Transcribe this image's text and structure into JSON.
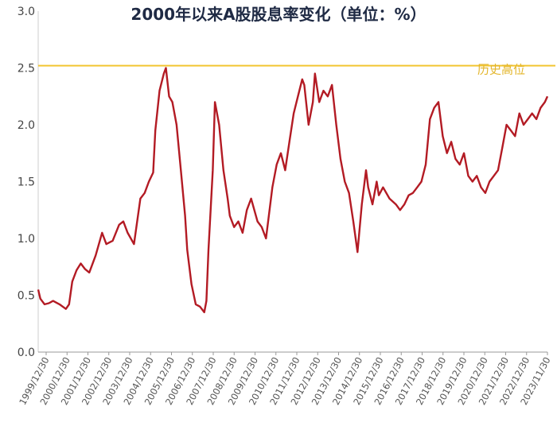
{
  "chart_data": {
    "type": "line",
    "title": "2000年以来A股股息率变化（单位：%）",
    "xlabel": "",
    "ylabel": "",
    "ylim": [
      0.0,
      3.0
    ],
    "y_ticks": [
      "0.0",
      "0.5",
      "1.0",
      "1.5",
      "2.0",
      "2.5",
      "3.0"
    ],
    "x_tick_labels": [
      "1999/12/30",
      "2000/12/30",
      "2001/12/30",
      "2002/12/30",
      "2003/12/30",
      "2004/12/30",
      "2005/12/30",
      "2006/12/30",
      "2007/12/30",
      "2008/12/30",
      "2009/12/30",
      "2010/12/30",
      "2011/12/30",
      "2012/12/30",
      "2013/12/30",
      "2014/12/30",
      "2015/12/30",
      "2016/12/30",
      "2017/12/30",
      "2018/12/30",
      "2019/12/30",
      "2020/12/30",
      "2021/12/30",
      "2022/12/30",
      "2023/11/30"
    ],
    "grid": false,
    "reference_line": {
      "value": 2.52,
      "label": "历史高位",
      "color": "#f2c531"
    },
    "series": [
      {
        "color": "#b31b24",
        "x": [
          2000.0,
          2000.1,
          2000.3,
          2000.5,
          2000.7,
          2001.0,
          2001.3,
          2001.45,
          2001.6,
          2001.8,
          2002.0,
          2002.2,
          2002.4,
          2002.7,
          2003.0,
          2003.2,
          2003.5,
          2003.8,
          2004.0,
          2004.2,
          2004.5,
          2004.8,
          2005.0,
          2005.2,
          2005.4,
          2005.5,
          2005.7,
          2005.9,
          2006.0,
          2006.15,
          2006.3,
          2006.5,
          2006.7,
          2006.9,
          2007.0,
          2007.2,
          2007.4,
          2007.6,
          2007.8,
          2007.9,
          2008.0,
          2008.2,
          2008.3,
          2008.5,
          2008.7,
          2008.9,
          2009.0,
          2009.2,
          2009.4,
          2009.6,
          2009.8,
          2010.0,
          2010.3,
          2010.5,
          2010.7,
          2011.0,
          2011.2,
          2011.4,
          2011.6,
          2011.8,
          2012.0,
          2012.2,
          2012.4,
          2012.5,
          2012.7,
          2012.9,
          2013.0,
          2013.2,
          2013.4,
          2013.6,
          2013.8,
          2014.0,
          2014.2,
          2014.4,
          2014.6,
          2014.8,
          2015.0,
          2015.2,
          2015.4,
          2015.5,
          2015.7,
          2015.9,
          2016.0,
          2016.2,
          2016.5,
          2016.8,
          2017.0,
          2017.2,
          2017.4,
          2017.6,
          2017.8,
          2018.0,
          2018.2,
          2018.4,
          2018.6,
          2018.8,
          2019.0,
          2019.2,
          2019.4,
          2019.6,
          2019.8,
          2020.0,
          2020.2,
          2020.4,
          2020.6,
          2020.8,
          2021.0,
          2021.2,
          2021.4,
          2021.6,
          2021.8,
          2022.0,
          2022.2,
          2022.4,
          2022.6,
          2022.8,
          2023.0,
          2023.2,
          2023.4,
          2023.6,
          2023.8,
          2023.92
        ],
        "y": [
          0.55,
          0.47,
          0.42,
          0.43,
          0.45,
          0.42,
          0.38,
          0.42,
          0.62,
          0.72,
          0.78,
          0.73,
          0.7,
          0.85,
          1.05,
          0.95,
          0.98,
          1.12,
          1.15,
          1.05,
          0.95,
          1.35,
          1.4,
          1.5,
          1.58,
          1.95,
          2.3,
          2.45,
          2.5,
          2.25,
          2.2,
          2.0,
          1.6,
          1.2,
          0.9,
          0.6,
          0.42,
          0.4,
          0.35,
          0.45,
          0.9,
          1.6,
          2.2,
          2.0,
          1.6,
          1.35,
          1.2,
          1.1,
          1.15,
          1.05,
          1.25,
          1.35,
          1.15,
          1.1,
          1.0,
          1.45,
          1.65,
          1.75,
          1.6,
          1.85,
          2.1,
          2.25,
          2.4,
          2.35,
          2.0,
          2.2,
          2.45,
          2.2,
          2.3,
          2.25,
          2.35,
          2.0,
          1.7,
          1.5,
          1.4,
          1.15,
          0.88,
          1.3,
          1.6,
          1.45,
          1.3,
          1.5,
          1.38,
          1.45,
          1.35,
          1.3,
          1.25,
          1.3,
          1.38,
          1.4,
          1.45,
          1.5,
          1.65,
          2.05,
          2.15,
          2.2,
          1.9,
          1.75,
          1.85,
          1.7,
          1.65,
          1.75,
          1.55,
          1.5,
          1.55,
          1.45,
          1.4,
          1.5,
          1.55,
          1.6,
          1.8,
          2.0,
          1.95,
          1.9,
          2.1,
          2.0,
          2.05,
          2.1,
          2.05,
          2.15,
          2.2,
          2.25
        ]
      }
    ]
  }
}
